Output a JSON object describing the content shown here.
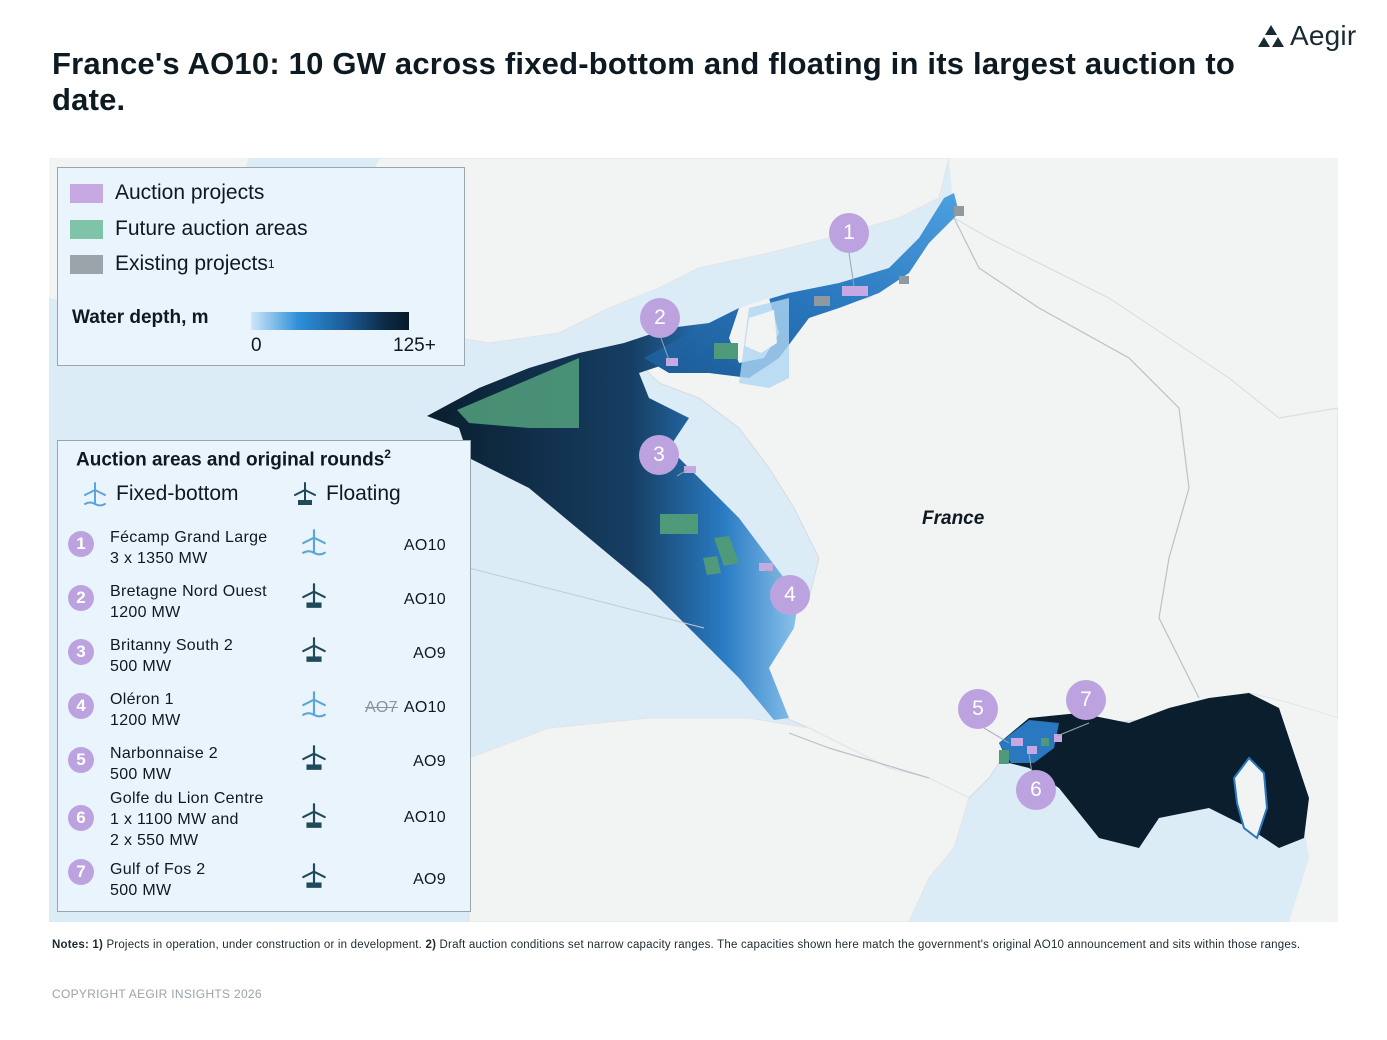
{
  "title": "France's AO10: 10 GW across fixed-bottom and floating in its largest auction to date.",
  "logo": {
    "text": "Aegir",
    "icon": "triangle-cluster-icon"
  },
  "legend": {
    "items": [
      {
        "label": "Auction projects",
        "color": "#c6a9e3"
      },
      {
        "label": "Future auction areas",
        "color": "#7fc3a8"
      },
      {
        "label": "Existing projects",
        "sup": "1",
        "color": "#9aa4aa"
      }
    ],
    "depth_title": "Water depth, m",
    "depth_min": "0",
    "depth_max": "125+"
  },
  "list": {
    "title": "Auction areas and original rounds",
    "title_sup": "2",
    "fixed_label": "Fixed-bottom",
    "floating_label": "Floating",
    "items": [
      {
        "num": "1",
        "name": "Fécamp Grand Large",
        "capacity": "3 x 1350 MW",
        "type": "fixed",
        "round": "AO10",
        "old_round": ""
      },
      {
        "num": "2",
        "name": "Bretagne Nord Ouest",
        "capacity": "1200 MW",
        "type": "floating",
        "round": "AO10",
        "old_round": ""
      },
      {
        "num": "3",
        "name": "Britanny South 2",
        "capacity": "500 MW",
        "type": "floating",
        "round": "AO9",
        "old_round": ""
      },
      {
        "num": "4",
        "name": "Oléron 1",
        "capacity": "1200 MW",
        "type": "fixed",
        "round": "AO10",
        "old_round": "AO7"
      },
      {
        "num": "5",
        "name": "Narbonnaise 2",
        "capacity": "500 MW",
        "type": "floating",
        "round": "AO9",
        "old_round": ""
      },
      {
        "num": "6",
        "name": "Golfe du Lion Centre",
        "capacity": "1 x 1100 MW and",
        "capacity2": "2 x 550 MW",
        "type": "floating",
        "round": "AO10",
        "old_round": ""
      },
      {
        "num": "7",
        "name": "Gulf of Fos 2",
        "capacity": "500 MW",
        "type": "floating",
        "round": "AO9",
        "old_round": ""
      }
    ]
  },
  "map": {
    "country_label": "France",
    "markers": [
      "1",
      "2",
      "3",
      "4",
      "5",
      "6",
      "7"
    ],
    "colors": {
      "sea": "#dcecf7",
      "land": "#f2f3f3",
      "border": "#b8c2c8",
      "deep": "#0a1e2e",
      "auction": "#c6a9e3",
      "future": "#4f9a7a",
      "existing": "#8f9aa0"
    }
  },
  "notes": {
    "label": "Notes:",
    "n1_label": "1)",
    "n1": "Projects in operation, under construction or in development.",
    "n2_label": "2)",
    "n2": "Draft auction conditions set narrow capacity ranges. The capacities shown here match the government's original AO10 announcement and sits within those ranges."
  },
  "copyright": "COPYRIGHT AEGIR INSIGHTS 2026"
}
